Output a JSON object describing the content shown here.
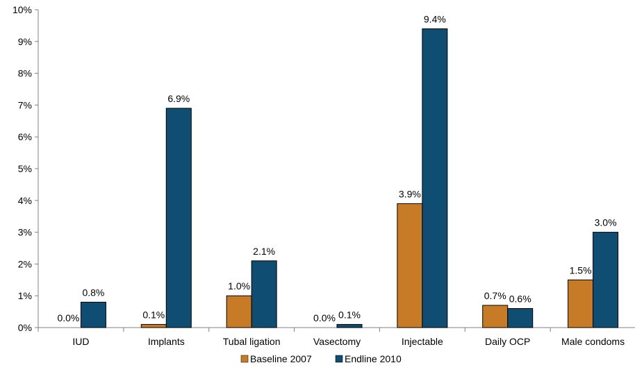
{
  "chart_data": {
    "type": "bar",
    "categories": [
      "IUD",
      "Implants",
      "Tubal ligation",
      "Vasectomy",
      "Injectable",
      "Daily OCP",
      "Male condoms"
    ],
    "series": [
      {
        "name": "Baseline 2007",
        "color": "#c77b27",
        "values": [
          0.0,
          0.1,
          1.0,
          0.0,
          3.9,
          0.7,
          1.5
        ],
        "labels": [
          "0.0%",
          "0.1%",
          "1.0%",
          "0.0%",
          "3.9%",
          "0.7%",
          "1.5%"
        ]
      },
      {
        "name": "Endline 2010",
        "color": "#0f4d73",
        "values": [
          0.8,
          6.9,
          2.1,
          0.1,
          9.4,
          0.6,
          3.0
        ],
        "labels": [
          "0.8%",
          "6.9%",
          "2.1%",
          "0.1%",
          "9.4%",
          "0.6%",
          "3.0%"
        ]
      }
    ],
    "ylim": [
      0,
      10
    ],
    "yticks": [
      "0%",
      "1%",
      "2%",
      "3%",
      "4%",
      "5%",
      "6%",
      "7%",
      "8%",
      "9%",
      "10%"
    ],
    "grid": false,
    "legend_position": "bottom"
  }
}
